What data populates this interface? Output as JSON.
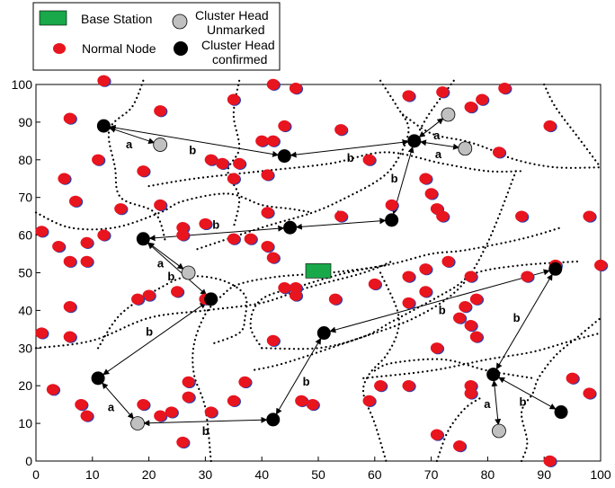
{
  "legend": {
    "base_station": "Base Station",
    "ch_unmarked_line1": "Cluster Head",
    "ch_unmarked_line2": "Unmarked",
    "normal_node": "Normal Node",
    "ch_confirmed_line1": "Cluster Head",
    "ch_confirmed_line2": "confirmed"
  },
  "colors": {
    "normal_node": "#e8141e",
    "normal_shadow": "#2a3fb0",
    "cluster_head_confirmed": "#000000",
    "cluster_head_unmarked": "#c0c0c0",
    "base_station": "#19a84a"
  },
  "chart_data": {
    "type": "scatter",
    "xlim": [
      0,
      100
    ],
    "ylim": [
      0,
      100
    ],
    "xticks": [
      0,
      10,
      20,
      30,
      40,
      50,
      60,
      70,
      80,
      90,
      100
    ],
    "yticks": [
      0,
      10,
      20,
      30,
      40,
      50,
      60,
      70,
      80,
      90,
      100
    ],
    "base_station": [
      50,
      50.5
    ],
    "normal_nodes": [
      [
        12,
        101
      ],
      [
        22,
        93
      ],
      [
        35,
        96
      ],
      [
        42,
        100
      ],
      [
        46,
        99
      ],
      [
        66,
        97
      ],
      [
        72,
        98
      ],
      [
        77,
        94
      ],
      [
        79,
        96
      ],
      [
        83,
        99
      ],
      [
        91,
        89
      ],
      [
        6,
        91
      ],
      [
        44,
        89
      ],
      [
        54,
        88
      ],
      [
        40,
        85
      ],
      [
        42,
        85
      ],
      [
        31,
        80
      ],
      [
        33,
        79
      ],
      [
        36,
        79
      ],
      [
        35,
        75
      ],
      [
        41,
        76
      ],
      [
        59,
        80
      ],
      [
        82,
        82
      ],
      [
        19,
        77
      ],
      [
        11,
        80
      ],
      [
        5,
        75
      ],
      [
        7,
        69
      ],
      [
        15,
        67
      ],
      [
        22,
        68
      ],
      [
        63,
        68
      ],
      [
        69,
        75
      ],
      [
        70,
        71
      ],
      [
        71,
        67
      ],
      [
        72,
        65
      ],
      [
        86,
        65
      ],
      [
        98,
        65
      ],
      [
        1,
        61
      ],
      [
        4,
        57
      ],
      [
        9,
        58
      ],
      [
        12,
        60
      ],
      [
        6,
        53
      ],
      [
        9,
        53
      ],
      [
        26,
        62
      ],
      [
        30,
        63
      ],
      [
        26,
        60
      ],
      [
        35,
        59
      ],
      [
        38,
        59
      ],
      [
        41,
        66
      ],
      [
        41,
        57
      ],
      [
        42,
        54
      ],
      [
        54,
        65
      ],
      [
        66,
        49
      ],
      [
        69,
        51
      ],
      [
        73,
        53
      ],
      [
        77,
        49
      ],
      [
        92,
        52
      ],
      [
        100,
        52
      ],
      [
        87,
        49
      ],
      [
        25,
        45
      ],
      [
        20,
        44
      ],
      [
        18,
        43
      ],
      [
        30,
        43
      ],
      [
        44,
        46
      ],
      [
        46,
        46
      ],
      [
        46,
        44
      ],
      [
        53,
        43
      ],
      [
        60,
        47
      ],
      [
        66,
        42
      ],
      [
        69,
        45
      ],
      [
        75,
        38
      ],
      [
        76,
        41
      ],
      [
        78,
        43
      ],
      [
        77,
        36
      ],
      [
        78,
        33
      ],
      [
        6,
        41
      ],
      [
        1,
        34
      ],
      [
        6,
        33
      ],
      [
        42,
        32
      ],
      [
        71,
        30
      ],
      [
        3,
        19
      ],
      [
        8,
        15
      ],
      [
        9,
        12
      ],
      [
        19,
        15
      ],
      [
        22,
        12
      ],
      [
        24,
        13
      ],
      [
        27,
        21
      ],
      [
        27,
        17
      ],
      [
        31,
        13
      ],
      [
        35,
        16
      ],
      [
        37,
        21
      ],
      [
        47,
        16
      ],
      [
        49,
        15
      ],
      [
        59,
        16
      ],
      [
        61,
        20
      ],
      [
        66,
        20
      ],
      [
        71,
        7
      ],
      [
        75,
        4
      ],
      [
        77,
        20
      ],
      [
        77,
        18
      ],
      [
        95,
        22
      ],
      [
        98,
        18
      ],
      [
        26,
        5
      ],
      [
        91,
        0
      ]
    ],
    "cluster_heads_confirmed": [
      [
        12,
        89
      ],
      [
        44,
        81
      ],
      [
        67,
        85
      ],
      [
        63,
        64
      ],
      [
        19,
        59
      ],
      [
        45,
        62
      ],
      [
        31,
        43
      ],
      [
        51,
        34
      ],
      [
        11,
        22
      ],
      [
        42,
        11
      ],
      [
        92,
        51
      ],
      [
        81,
        23
      ],
      [
        93,
        13
      ]
    ],
    "cluster_heads_unmarked": [
      [
        22,
        84
      ],
      [
        73,
        92
      ],
      [
        76,
        83
      ],
      [
        27,
        50
      ],
      [
        18,
        10
      ],
      [
        82,
        8
      ]
    ],
    "links": [
      {
        "from": [
          12,
          89
        ],
        "to": [
          22,
          84
        ],
        "label": "a"
      },
      {
        "from": [
          12,
          89
        ],
        "to": [
          44,
          81
        ],
        "label": "b"
      },
      {
        "from": [
          44,
          81
        ],
        "to": [
          67,
          85
        ],
        "label": "b"
      },
      {
        "from": [
          67,
          85
        ],
        "to": [
          73,
          92
        ],
        "label": "a"
      },
      {
        "from": [
          67,
          85
        ],
        "to": [
          76,
          83
        ],
        "label": "a"
      },
      {
        "from": [
          67,
          85
        ],
        "to": [
          63,
          64
        ],
        "label": "b"
      },
      {
        "from": [
          63,
          64
        ],
        "to": [
          45,
          62
        ],
        "label": "b"
      },
      {
        "from": [
          45,
          62
        ],
        "to": [
          19,
          59
        ],
        "label": "b"
      },
      {
        "from": [
          19,
          59
        ],
        "to": [
          27,
          50
        ],
        "label": "a"
      },
      {
        "from": [
          19,
          59
        ],
        "to": [
          31,
          43
        ],
        "label": "b"
      },
      {
        "from": [
          31,
          43
        ],
        "to": [
          11,
          22
        ],
        "label": "b"
      },
      {
        "from": [
          11,
          22
        ],
        "to": [
          18,
          10
        ],
        "label": "a"
      },
      {
        "from": [
          18,
          10
        ],
        "to": [
          42,
          11
        ],
        "label": "b"
      },
      {
        "from": [
          42,
          11
        ],
        "to": [
          51,
          34
        ],
        "label": "b"
      },
      {
        "from": [
          51,
          34
        ],
        "to": [
          92,
          51
        ],
        "label": "b"
      },
      {
        "from": [
          92,
          51
        ],
        "to": [
          81,
          23
        ],
        "label": "b"
      },
      {
        "from": [
          81,
          23
        ],
        "to": [
          82,
          8
        ],
        "label": "a"
      },
      {
        "from": [
          81,
          23
        ],
        "to": [
          93,
          13
        ],
        "label": "b"
      }
    ],
    "boundaries": [
      [
        [
          19,
          101
        ],
        [
          17,
          94
        ],
        [
          13,
          88
        ],
        [
          14,
          78
        ],
        [
          15,
          70
        ],
        [
          21,
          66
        ],
        [
          23,
          58
        ]
      ],
      [
        [
          36,
          101
        ],
        [
          35,
          92
        ],
        [
          36,
          83
        ],
        [
          34,
          77
        ],
        [
          36,
          70
        ],
        [
          35,
          62
        ]
      ],
      [
        [
          61,
          101
        ],
        [
          64,
          94
        ],
        [
          66,
          88
        ],
        [
          64,
          80
        ],
        [
          61,
          75
        ],
        [
          55,
          70
        ],
        [
          49,
          66
        ],
        [
          40,
          62
        ],
        [
          28,
          56
        ]
      ],
      [
        [
          74,
          101
        ],
        [
          70,
          93
        ],
        [
          68,
          88
        ]
      ],
      [
        [
          65,
          92
        ],
        [
          70,
          87
        ],
        [
          76,
          85
        ],
        [
          80,
          83
        ],
        [
          85,
          80
        ],
        [
          92,
          78
        ],
        [
          100,
          78
        ]
      ],
      [
        [
          20,
          73
        ],
        [
          28,
          75
        ],
        [
          40,
          77
        ],
        [
          52,
          79
        ],
        [
          62,
          82
        ],
        [
          72,
          79
        ],
        [
          80,
          77
        ],
        [
          86,
          77
        ]
      ],
      [
        [
          0,
          66
        ],
        [
          6,
          62
        ],
        [
          14,
          62
        ],
        [
          22,
          66
        ],
        [
          26,
          69
        ],
        [
          34,
          71
        ],
        [
          40,
          68
        ],
        [
          45,
          67
        ],
        [
          49,
          66
        ]
      ],
      [
        [
          85,
          77
        ],
        [
          80,
          58
        ],
        [
          75,
          46
        ],
        [
          67,
          38
        ],
        [
          56,
          32
        ],
        [
          44,
          26
        ],
        [
          38,
          24
        ]
      ],
      [
        [
          90,
          100
        ],
        [
          92,
          94
        ],
        [
          96,
          86
        ],
        [
          100,
          78
        ]
      ],
      [
        [
          0,
          30
        ],
        [
          10,
          32
        ],
        [
          20,
          38
        ],
        [
          30,
          40
        ],
        [
          40,
          42
        ],
        [
          48,
          46
        ],
        [
          58,
          50
        ],
        [
          63,
          53
        ]
      ],
      [
        [
          40,
          30
        ],
        [
          38,
          36
        ],
        [
          40,
          43
        ],
        [
          48,
          47
        ],
        [
          55,
          50
        ],
        [
          62,
          52
        ]
      ],
      [
        [
          40,
          30
        ],
        [
          50,
          30
        ],
        [
          58,
          33
        ],
        [
          63,
          37
        ],
        [
          68,
          41
        ],
        [
          74,
          46
        ],
        [
          78,
          50
        ],
        [
          86,
          52
        ],
        [
          96,
          53
        ]
      ],
      [
        [
          11,
          30
        ],
        [
          15,
          39
        ],
        [
          22,
          46
        ],
        [
          27,
          49
        ],
        [
          33,
          48
        ],
        [
          37,
          44
        ],
        [
          37,
          38
        ],
        [
          36,
          34
        ],
        [
          31,
          31
        ]
      ],
      [
        [
          31,
          0
        ],
        [
          30,
          14
        ],
        [
          28,
          23
        ],
        [
          28,
          31
        ],
        [
          30,
          39
        ],
        [
          33,
          44
        ],
        [
          36,
          47
        ],
        [
          43,
          49
        ],
        [
          52,
          50
        ],
        [
          62,
          52
        ],
        [
          70,
          55
        ],
        [
          76,
          56
        ],
        [
          86,
          59
        ],
        [
          93,
          62
        ]
      ],
      [
        [
          61,
          50
        ],
        [
          64,
          40
        ],
        [
          64,
          34
        ],
        [
          62,
          28
        ],
        [
          59,
          23
        ],
        [
          58,
          18
        ],
        [
          60,
          10
        ],
        [
          62,
          0
        ]
      ],
      [
        [
          58,
          22
        ],
        [
          70,
          24
        ],
        [
          80,
          27
        ],
        [
          88,
          29
        ],
        [
          95,
          32
        ],
        [
          100,
          34
        ]
      ],
      [
        [
          60,
          24
        ],
        [
          63,
          26
        ],
        [
          72,
          27
        ],
        [
          80,
          24
        ],
        [
          88,
          22
        ]
      ],
      [
        [
          71,
          0
        ],
        [
          73,
          8
        ],
        [
          76,
          14
        ],
        [
          79,
          17
        ]
      ],
      [
        [
          86,
          0
        ],
        [
          87,
          5
        ],
        [
          86,
          13
        ],
        [
          88,
          18
        ],
        [
          89,
          22
        ],
        [
          92,
          28
        ],
        [
          96,
          33
        ],
        [
          100,
          38
        ]
      ]
    ]
  }
}
